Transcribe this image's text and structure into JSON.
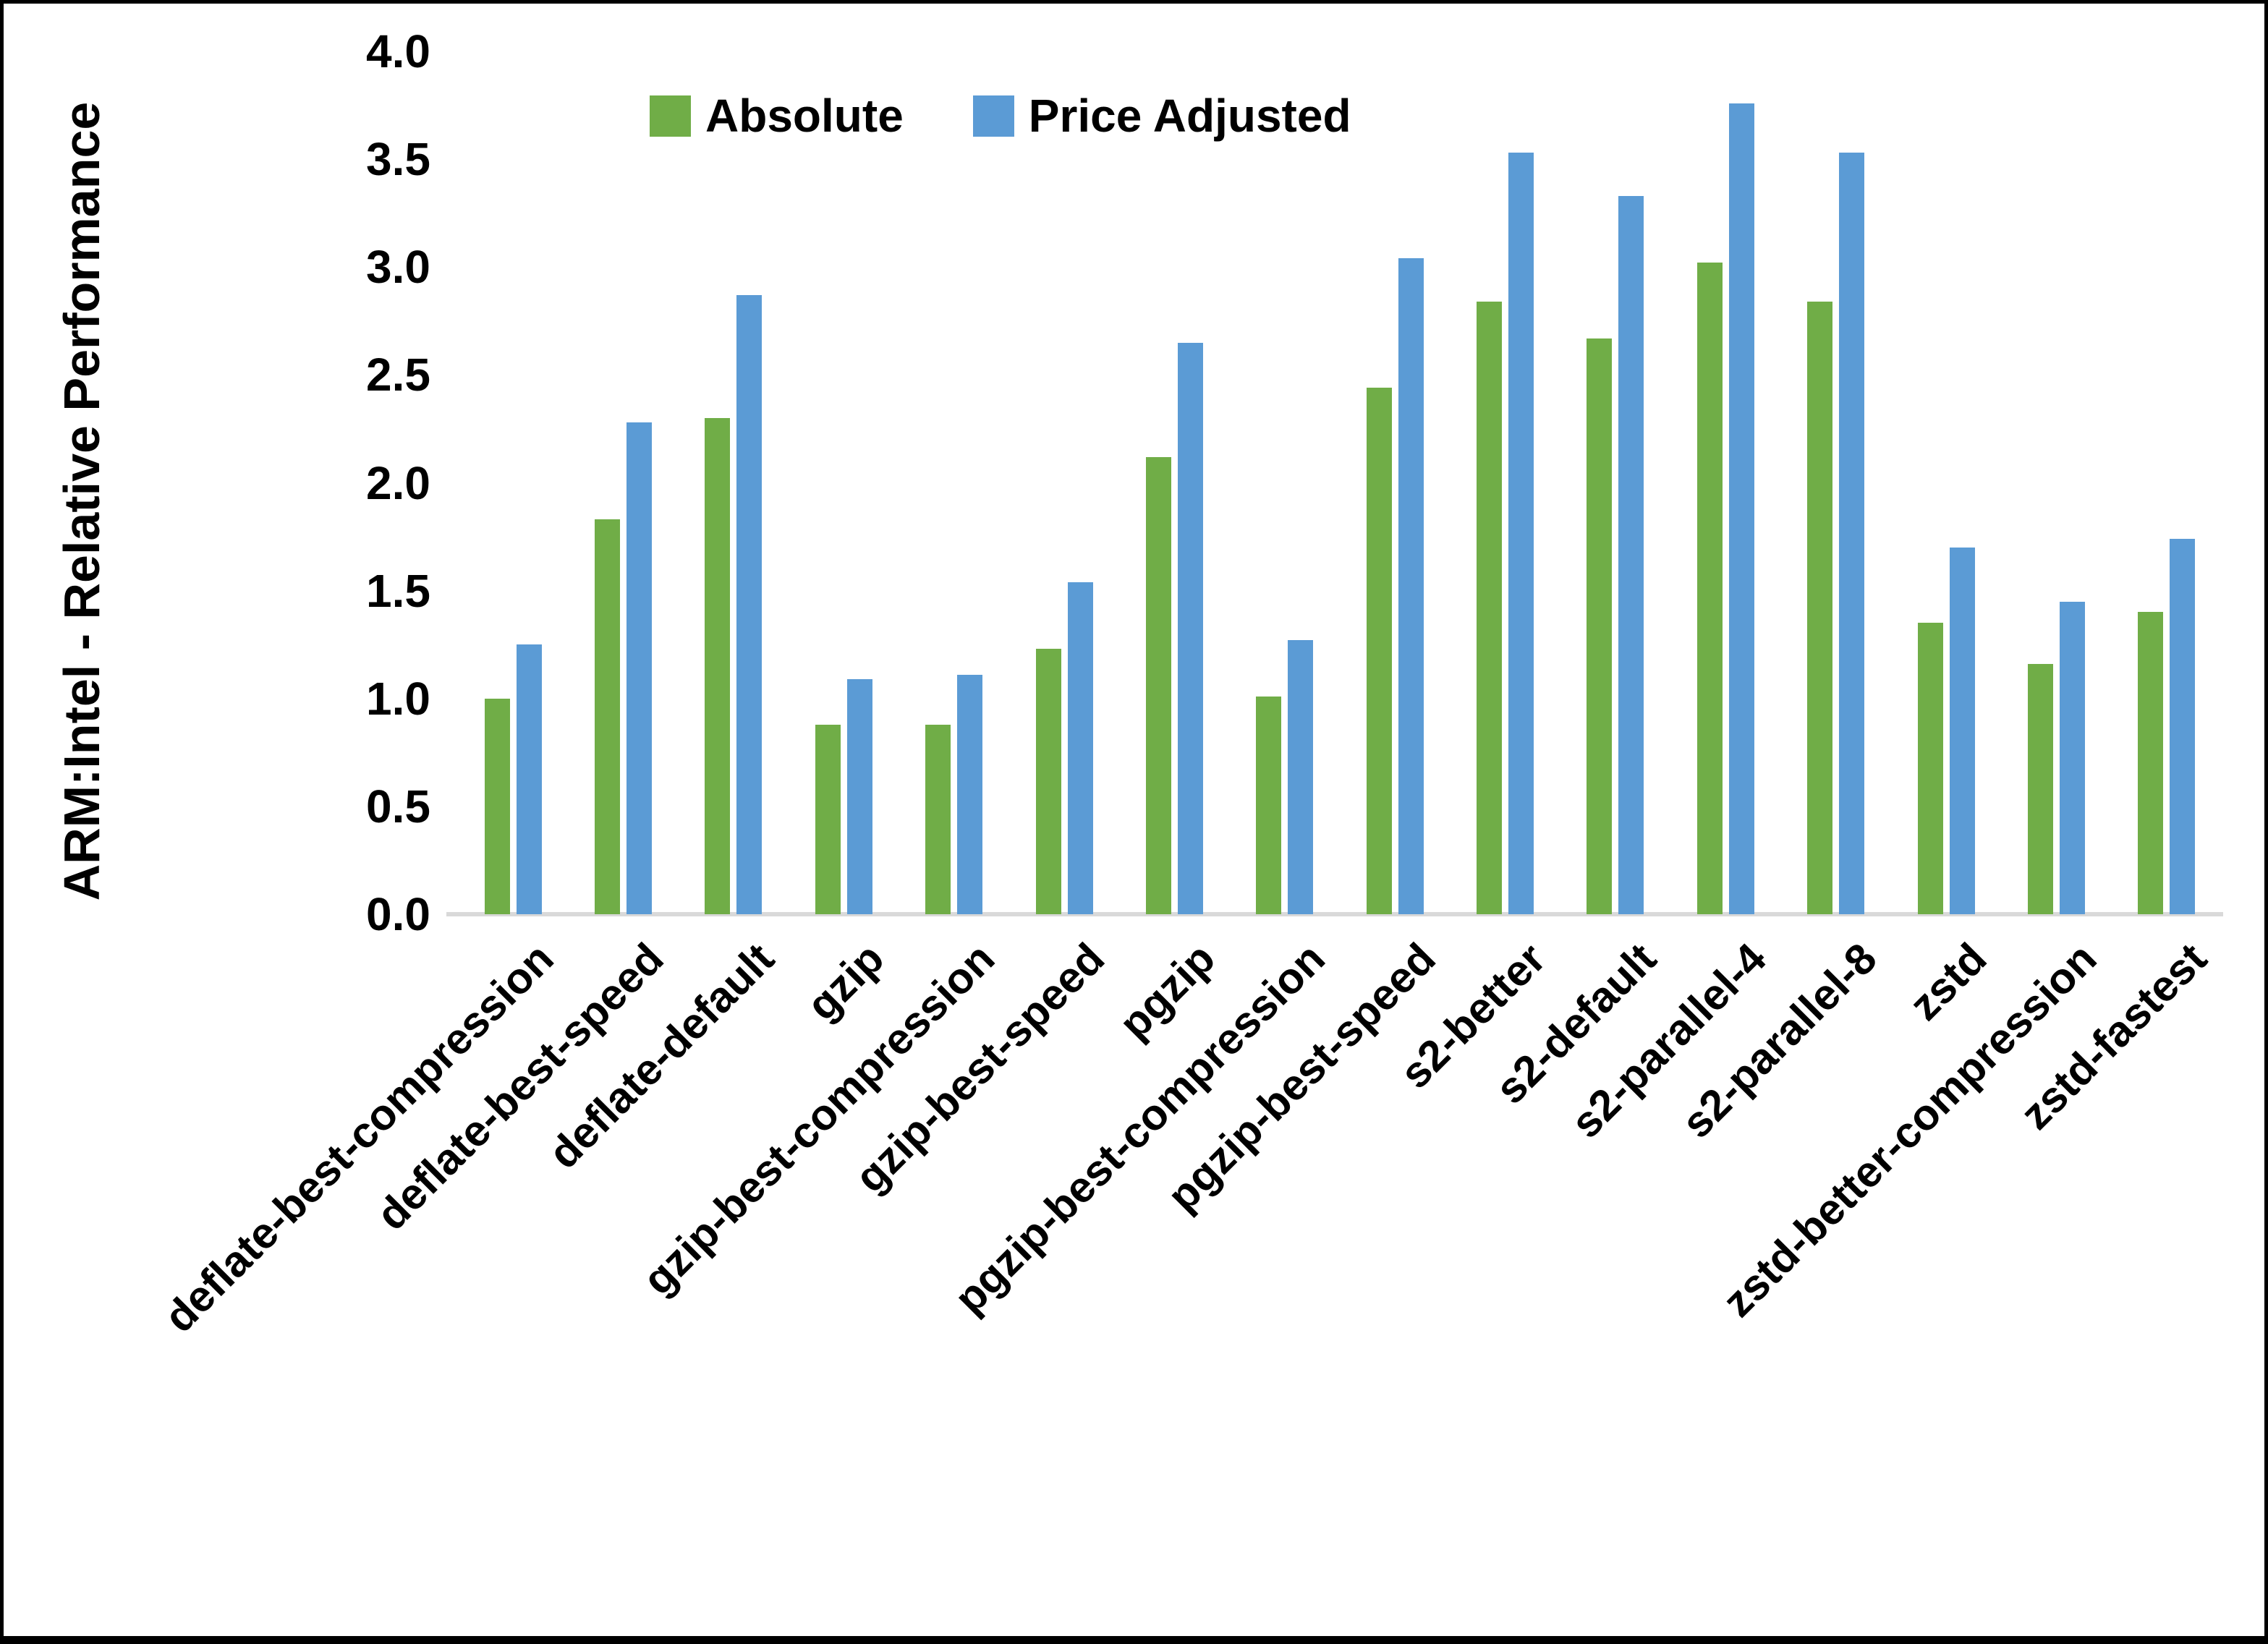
{
  "figure": {
    "background_color": "#ffffff",
    "border_color": "#000000",
    "axis_line_color": "#d9d9d9",
    "text_color": "#000000"
  },
  "chart_data": {
    "type": "bar",
    "title": "",
    "xlabel": "",
    "ylabel": "ARM:Intel - Relative Performance",
    "ylim": [
      0.0,
      4.0
    ],
    "ytick_step": 0.5,
    "ytick_labels": [
      "4.0",
      "3.5",
      "3.0",
      "2.5",
      "2.0",
      "1.5",
      "1.0",
      "0.5",
      "0.0"
    ],
    "grid": false,
    "legend_position": "top",
    "categories": [
      "deflate-best-compression",
      "deflate-best-speed",
      "deflate-default",
      "gzip",
      "gzip-best-compression",
      "gzip-best-speed",
      "pgzip",
      "pgzip-best-compression",
      "pgzip-best-speed",
      "s2-better",
      "s2-default",
      "s2-parallel-4",
      "s2-parallel-8",
      "zstd",
      "zstd-better-compression",
      "zstd-fastest"
    ],
    "series": [
      {
        "name": "Absolute",
        "color": "#70AD47",
        "values": [
          1.0,
          1.83,
          2.3,
          0.88,
          0.88,
          1.23,
          2.12,
          1.01,
          2.44,
          2.84,
          2.67,
          3.02,
          2.84,
          1.35,
          1.16,
          1.4
        ]
      },
      {
        "name": "Price Adjusted",
        "color": "#5B9BD5",
        "values": [
          1.25,
          2.28,
          2.87,
          1.09,
          1.11,
          1.54,
          2.65,
          1.27,
          3.04,
          3.53,
          3.33,
          3.76,
          3.53,
          1.7,
          1.45,
          1.74
        ]
      }
    ]
  }
}
